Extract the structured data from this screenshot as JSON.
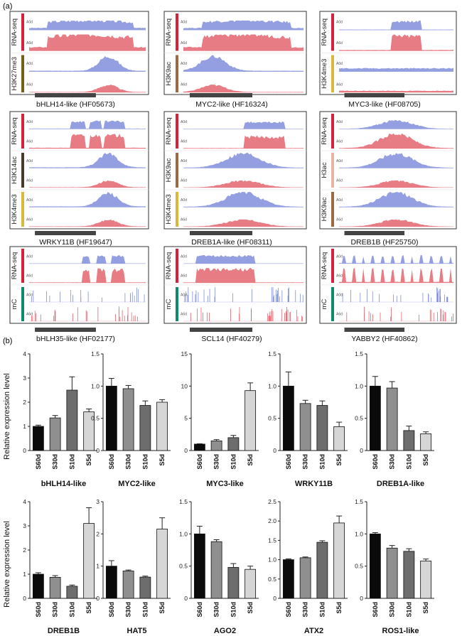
{
  "panel_a": {
    "label": "(a)",
    "genes": [
      {
        "name": "bHLH14-like (HF05673)",
        "tracks": [
          {
            "mark": "RNA-seq",
            "color": "#d5213b",
            "kind": "rna",
            "shape": "body-broad"
          },
          {
            "mark": "H3K27me3",
            "color": "#7a5c1a",
            "kind": "mod",
            "shape": "right-peak"
          }
        ]
      },
      {
        "name": "MYC2-like (HF16324)",
        "tracks": [
          {
            "mark": "RNA-seq",
            "color": "#d5213b",
            "kind": "rna",
            "shape": "body-broad"
          },
          {
            "mark": "H3K9ac",
            "color": "#9b6a45",
            "kind": "mod",
            "shape": "left-peak"
          }
        ]
      },
      {
        "name": "MYC3-like (HF08705)",
        "tracks": [
          {
            "mark": "RNA-seq",
            "color": "#d5213b",
            "kind": "rna",
            "shape": "center-block"
          },
          {
            "mark": "H3K4me3",
            "color": "#d9b93a",
            "kind": "mod",
            "shape": "flat-noise"
          }
        ]
      },
      {
        "name": "WRKY11B (HF19647)",
        "tracks": [
          {
            "mark": "RNA-seq",
            "color": "#d5213b",
            "kind": "rna",
            "shape": "exons"
          },
          {
            "mark": "H3K14ac",
            "color": "#4a3a2a",
            "kind": "mod",
            "shape": "right-peak"
          },
          {
            "mark": "H3K4me3",
            "color": "#d9b93a",
            "kind": "mod",
            "shape": "right-peak"
          }
        ]
      },
      {
        "name": "DREB1A-like (HF08311)",
        "tracks": [
          {
            "mark": "RNA-seq",
            "color": "#d5213b",
            "kind": "rna",
            "shape": "right-block"
          },
          {
            "mark": "H3K9ac",
            "color": "#9b6a45",
            "kind": "mod",
            "shape": "center-peak"
          },
          {
            "mark": "H3K4me3",
            "color": "#d9b93a",
            "kind": "mod",
            "shape": "center-peak"
          }
        ]
      },
      {
        "name": "DREB1B (HF25750)",
        "tracks": [
          {
            "mark": "RNA-seq",
            "color": "#d5213b",
            "kind": "rna",
            "shape": "center-peak"
          },
          {
            "mark": "H3ac",
            "color": "#e7b5a3",
            "kind": "mod",
            "shape": "center-peak"
          },
          {
            "mark": "H3K9ac",
            "color": "#9b6a45",
            "kind": "mod",
            "shape": "center-peak"
          }
        ]
      },
      {
        "name": "bHLH35-like (HF02177)",
        "tracks": [
          {
            "mark": "RNA-seq",
            "color": "#d5213b",
            "kind": "rna",
            "shape": "exons-right"
          },
          {
            "mark": "mC",
            "color": "#0f8a6c",
            "kind": "mc",
            "shape": "mc-right"
          }
        ]
      },
      {
        "name": "SCL14 (HF40279)",
        "tracks": [
          {
            "mark": "RNA-seq",
            "color": "#d5213b",
            "kind": "rna",
            "shape": "left-block"
          },
          {
            "mark": "mC",
            "color": "#0f8a6c",
            "kind": "mc",
            "shape": "mc-split"
          }
        ]
      },
      {
        "name": "YABBY2 (HF40862)",
        "tracks": [
          {
            "mark": "RNA-seq",
            "color": "#d5213b",
            "kind": "rna",
            "shape": "spikes"
          },
          {
            "mark": "mC",
            "color": "#0f8a6c",
            "kind": "mc",
            "shape": "mc-right"
          }
        ]
      }
    ],
    "sample_top": "A0d",
    "sample_bottom": "A6d"
  },
  "panel_b_label": "(b)",
  "chart_data": [
    {
      "type": "bar",
      "title": "bHLH14-like",
      "categories": [
        "S60d",
        "S30d",
        "S10d",
        "S5d"
      ],
      "values": [
        1.0,
        1.35,
        2.5,
        1.6
      ],
      "errors": [
        0.05,
        0.1,
        0.55,
        0.12
      ],
      "ylim": [
        0,
        4
      ],
      "yticks": [
        0,
        1,
        2,
        3,
        4
      ],
      "ylabel": "Relative expression level"
    },
    {
      "type": "bar",
      "title": "MYC2-like",
      "categories": [
        "S60d",
        "S30d",
        "S10d",
        "S5d"
      ],
      "values": [
        1.0,
        0.96,
        0.7,
        0.75
      ],
      "errors": [
        0.12,
        0.05,
        0.07,
        0.04
      ],
      "ylim": [
        0,
        1.5
      ],
      "yticks": [
        0,
        0.5,
        1.0,
        1.5
      ],
      "ylabel": ""
    },
    {
      "type": "bar",
      "title": "MYC3-like",
      "categories": [
        "S60d",
        "S30d",
        "S10d",
        "S5d"
      ],
      "values": [
        1.0,
        1.5,
        2.0,
        9.3
      ],
      "errors": [
        0.05,
        0.2,
        0.35,
        1.2
      ],
      "ylim": [
        0,
        15
      ],
      "yticks": [
        0,
        5,
        10,
        15
      ],
      "ylabel": ""
    },
    {
      "type": "bar",
      "title": "WRKY11B",
      "categories": [
        "S60d",
        "S30d",
        "S10d",
        "S5d"
      ],
      "values": [
        1.0,
        0.73,
        0.7,
        0.37
      ],
      "errors": [
        0.22,
        0.05,
        0.07,
        0.07
      ],
      "ylim": [
        0,
        1.5
      ],
      "yticks": [
        0,
        0.5,
        1.0,
        1.5
      ],
      "ylabel": ""
    },
    {
      "type": "bar",
      "title": "DREB1A-like",
      "categories": [
        "S60d",
        "S30d",
        "S10d",
        "S5d"
      ],
      "values": [
        1.0,
        0.97,
        0.31,
        0.26
      ],
      "errors": [
        0.15,
        0.1,
        0.07,
        0.03
      ],
      "ylim": [
        0,
        1.5
      ],
      "yticks": [
        0,
        0.5,
        1.0,
        1.5
      ],
      "ylabel": ""
    },
    {
      "type": "bar",
      "title": "DREB1B",
      "categories": [
        "S60d",
        "S30d",
        "S10d",
        "S5d"
      ],
      "values": [
        1.0,
        0.87,
        0.5,
        3.1
      ],
      "errors": [
        0.06,
        0.07,
        0.05,
        0.65
      ],
      "ylim": [
        0,
        4
      ],
      "yticks": [
        0,
        1,
        2,
        3,
        4
      ],
      "ylabel": "Relative expression level"
    },
    {
      "type": "bar",
      "title": "HAT5",
      "categories": [
        "S60d",
        "S30d",
        "S10d",
        "S5d"
      ],
      "values": [
        1.0,
        0.85,
        0.66,
        2.15
      ],
      "errors": [
        0.17,
        0.03,
        0.03,
        0.35
      ],
      "ylim": [
        0,
        3
      ],
      "yticks": [
        0,
        1,
        2,
        3
      ],
      "ylabel": ""
    },
    {
      "type": "bar",
      "title": "AGO2",
      "categories": [
        "S60d",
        "S30d",
        "S10d",
        "S5d"
      ],
      "values": [
        1.0,
        0.88,
        0.48,
        0.45
      ],
      "errors": [
        0.12,
        0.03,
        0.06,
        0.05
      ],
      "ylim": [
        0,
        1.5
      ],
      "yticks": [
        0,
        0.5,
        1.0,
        1.5
      ],
      "ylabel": ""
    },
    {
      "type": "bar",
      "title": "ATX2",
      "categories": [
        "S60d",
        "S30d",
        "S10d",
        "S5d"
      ],
      "values": [
        1.0,
        1.05,
        1.45,
        1.95
      ],
      "errors": [
        0.02,
        0.02,
        0.04,
        0.18
      ],
      "ylim": [
        0,
        2.5
      ],
      "yticks": [
        0,
        0.5,
        1.0,
        1.5,
        2.0,
        2.5
      ],
      "ylabel": ""
    },
    {
      "type": "bar",
      "title": "ROS1-like",
      "categories": [
        "S60d",
        "S30d",
        "S10d",
        "S5d"
      ],
      "values": [
        1.0,
        0.78,
        0.73,
        0.58
      ],
      "errors": [
        0.02,
        0.04,
        0.04,
        0.03
      ],
      "ylim": [
        0,
        1.5
      ],
      "yticks": [
        0,
        0.5,
        1.0,
        1.5
      ],
      "ylabel": ""
    }
  ],
  "bar_colors": [
    "#0a0a0a",
    "#8f8f8f",
    "#6d6d6d",
    "#d6d6d6"
  ]
}
